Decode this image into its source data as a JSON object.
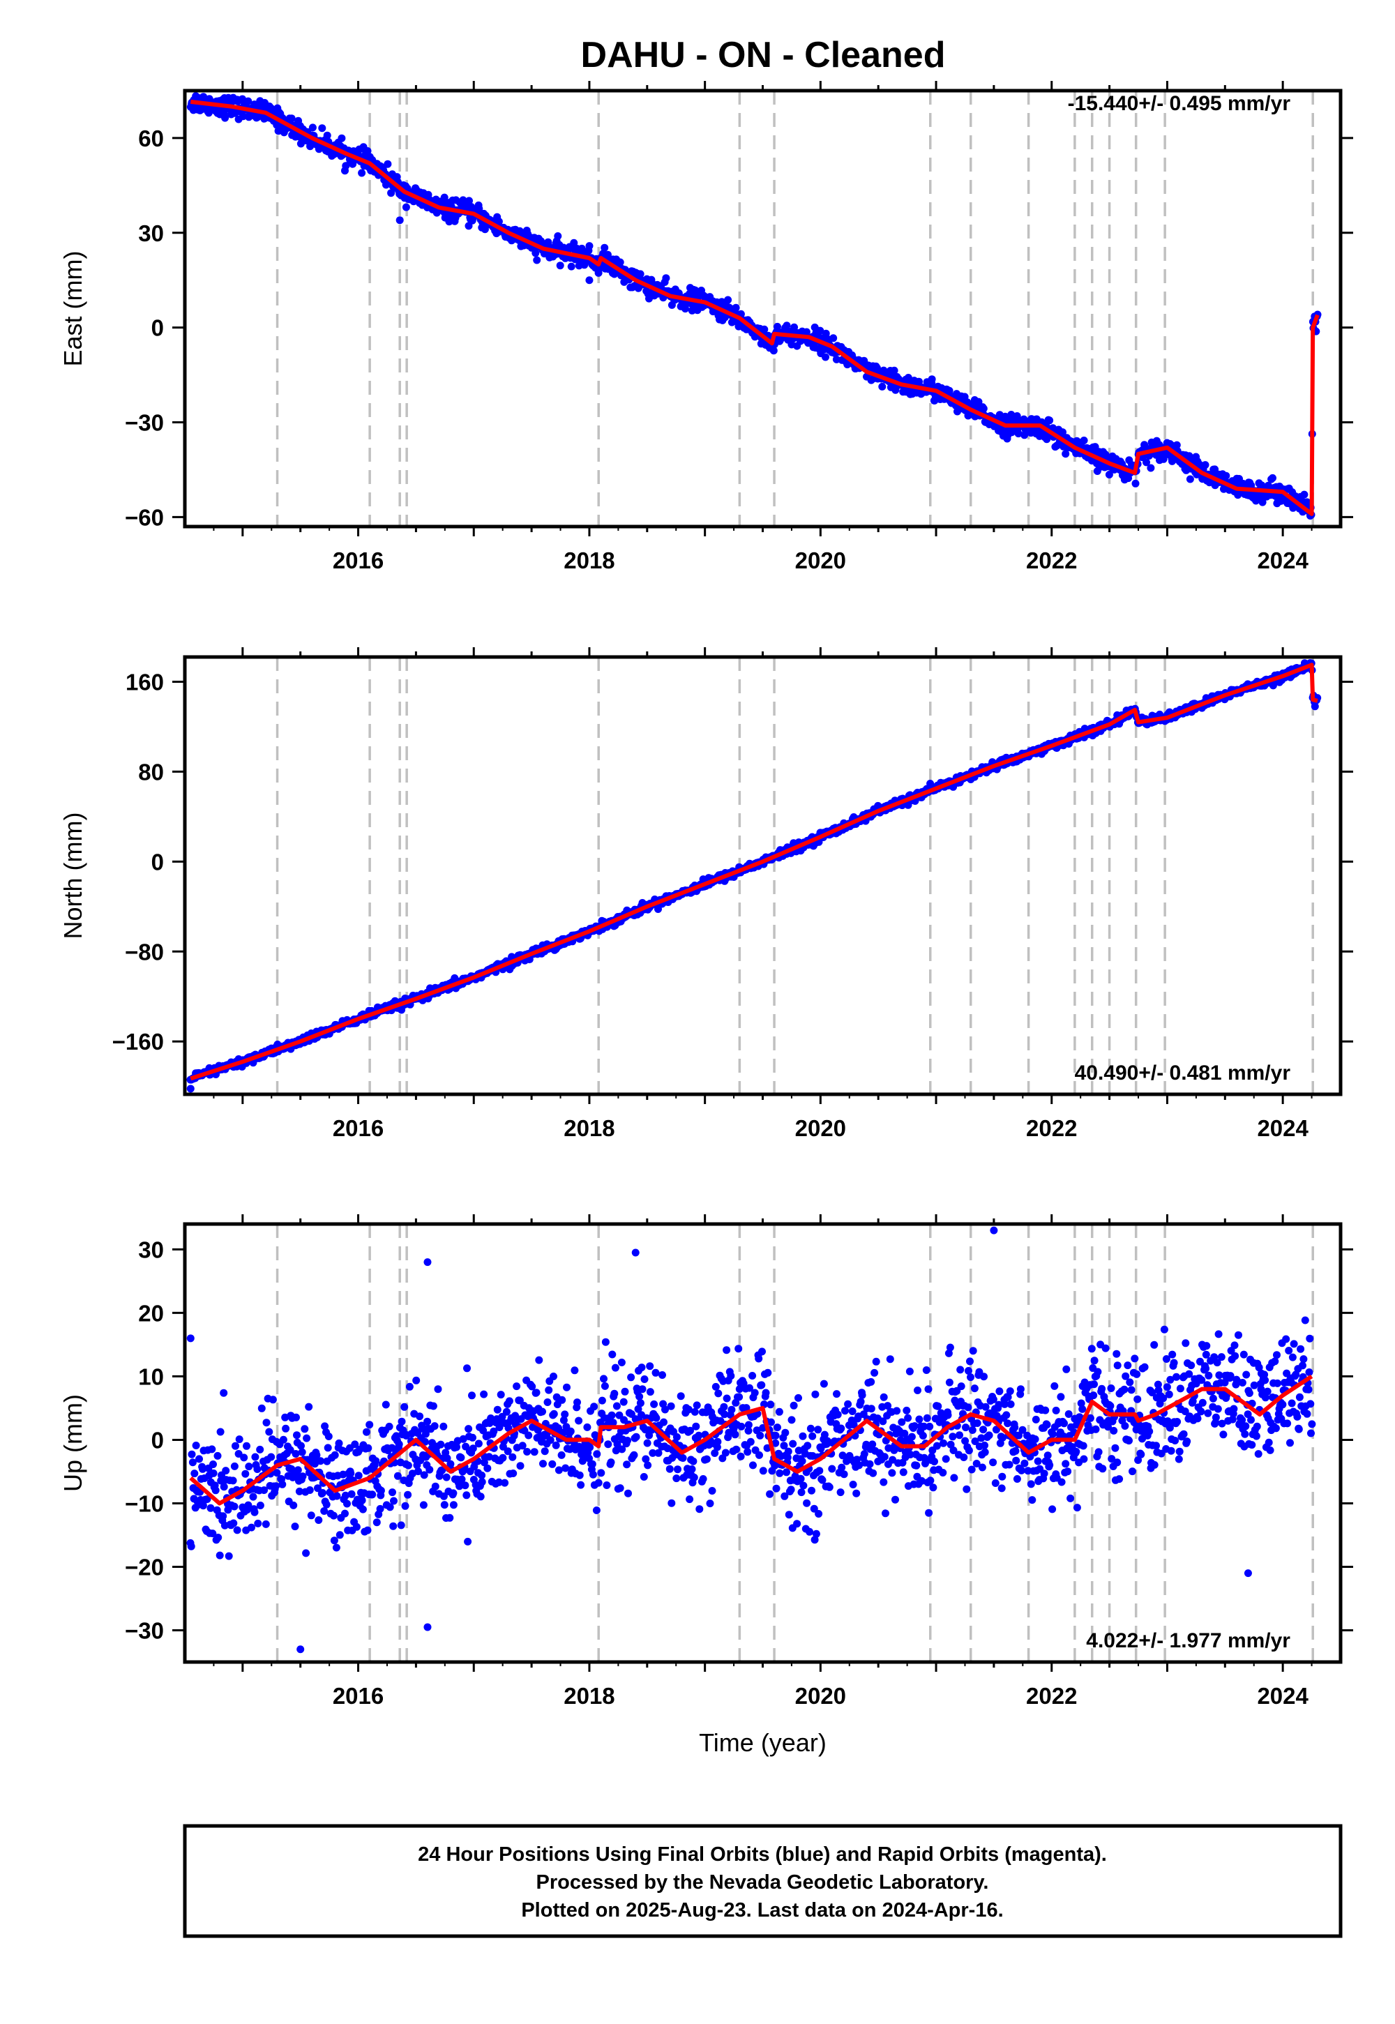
{
  "title": "DAHU  - ON - Cleaned",
  "footer": {
    "line1": "24 Hour Positions Using Final Orbits (blue) and Rapid Orbits (magenta).",
    "line2": "Processed by the Nevada Geodetic Laboratory.",
    "line3": "Plotted on 2025-Aug-23. Last data on 2024-Apr-16."
  },
  "colors": {
    "data": "#0000ff",
    "model": "#ff0000",
    "breaks": "#c0c0c0",
    "frame": "#000000"
  },
  "chart_data": [
    {
      "type": "scatter",
      "component": "east",
      "ylabel": "East (mm)",
      "xlabel": "",
      "xlim": [
        2014.5,
        2024.5
      ],
      "ylim": [
        -63,
        75
      ],
      "yticks": [
        60,
        30,
        0,
        -30,
        -60
      ],
      "ytick_labels": [
        "60",
        "30",
        "0",
        "−30",
        "−60"
      ],
      "xticks": [
        2016,
        2018,
        2020,
        2022,
        2024
      ],
      "xtick_labels": [
        "2016",
        "2018",
        "2020",
        "2022",
        "2024"
      ],
      "rate_label": "-15.440+/- 0.495 mm/yr",
      "rate_mm_yr": -15.44,
      "rate_sigma": 0.495,
      "scatter_sigma": 1.6,
      "model": {
        "x": [
          2014.55,
          2014.9,
          2015.2,
          2015.6,
          2015.9,
          2016.1,
          2016.4,
          2016.7,
          2017.0,
          2017.3,
          2017.6,
          2018.0,
          2018.08,
          2018.1,
          2018.4,
          2018.7,
          2019.0,
          2019.3,
          2019.58,
          2019.6,
          2019.9,
          2020.1,
          2020.4,
          2020.7,
          2021.0,
          2021.3,
          2021.6,
          2021.9,
          2022.2,
          2022.5,
          2022.72,
          2022.75,
          2023.0,
          2023.3,
          2023.6,
          2024.0,
          2024.25,
          2024.26,
          2024.3
        ],
        "y": [
          71.5,
          70,
          68,
          60,
          55,
          52,
          43,
          38,
          36,
          30,
          25,
          22,
          20,
          22,
          15,
          10,
          8,
          3,
          -5,
          -2,
          -3,
          -6,
          -14,
          -18,
          -20,
          -26,
          -31,
          -31,
          -38,
          -43,
          -46,
          -40,
          -38,
          -46,
          -51,
          -52,
          -59,
          0,
          4
        ]
      },
      "outliers": [
        {
          "x": 2016.36,
          "y": 34
        },
        {
          "x": 2018.0,
          "y": 15
        }
      ]
    },
    {
      "type": "scatter",
      "component": "north",
      "ylabel": "North (mm)",
      "xlabel": "",
      "xlim": [
        2014.5,
        2024.5
      ],
      "ylim": [
        -207,
        182
      ],
      "yticks": [
        160,
        80,
        0,
        -80,
        -160
      ],
      "ytick_labels": [
        "160",
        "80",
        "0",
        "−80",
        "−160"
      ],
      "xticks": [
        2016,
        2018,
        2020,
        2022,
        2024
      ],
      "xtick_labels": [
        "2016",
        "2018",
        "2020",
        "2022",
        "2024"
      ],
      "rate_label": "40.490+/- 0.481 mm/yr",
      "rate_mm_yr": 40.49,
      "rate_sigma": 0.481,
      "scatter_sigma": 1.8,
      "model": {
        "x": [
          2014.55,
          2015.0,
          2015.5,
          2016.0,
          2016.5,
          2017.0,
          2017.5,
          2018.0,
          2018.5,
          2019.0,
          2019.5,
          2020.0,
          2020.5,
          2021.0,
          2021.5,
          2022.0,
          2022.5,
          2022.72,
          2022.75,
          2023.0,
          2023.5,
          2024.0,
          2024.25,
          2024.26,
          2024.3
        ],
        "y": [
          -193,
          -178,
          -160,
          -140,
          -122,
          -103,
          -82,
          -62,
          -40,
          -20,
          0,
          22,
          45,
          65,
          85,
          103,
          122,
          135,
          124,
          128,
          148,
          165,
          175,
          144,
          143
        ]
      },
      "outliers": [
        {
          "x": 2014.55,
          "y": -202
        }
      ]
    },
    {
      "type": "scatter",
      "component": "up",
      "ylabel": "Up (mm)",
      "xlabel": "Time (year)",
      "xlim": [
        2014.5,
        2024.5
      ],
      "ylim": [
        -35,
        34
      ],
      "yticks": [
        30,
        20,
        10,
        0,
        -10,
        -20,
        -30
      ],
      "ytick_labels": [
        "30",
        "20",
        "10",
        "0",
        "−10",
        "−20",
        "−30"
      ],
      "xticks": [
        2016,
        2018,
        2020,
        2022,
        2024
      ],
      "xtick_labels": [
        "2016",
        "2018",
        "2020",
        "2022",
        "2024"
      ],
      "rate_label": "4.022+/- 1.977 mm/yr",
      "rate_mm_yr": 4.022,
      "rate_sigma": 1.977,
      "scatter_sigma": 4.5,
      "model": {
        "x": [
          2014.55,
          2014.8,
          2015.0,
          2015.3,
          2015.5,
          2015.8,
          2016.1,
          2016.3,
          2016.5,
          2016.8,
          2017.0,
          2017.3,
          2017.5,
          2017.8,
          2018.0,
          2018.08,
          2018.1,
          2018.3,
          2018.5,
          2018.8,
          2019.0,
          2019.3,
          2019.5,
          2019.6,
          2019.8,
          2020.0,
          2020.2,
          2020.4,
          2020.7,
          2020.9,
          2021.1,
          2021.3,
          2021.5,
          2021.8,
          2022.0,
          2022.2,
          2022.35,
          2022.5,
          2022.72,
          2022.75,
          2022.9,
          2023.0,
          2023.3,
          2023.5,
          2023.8,
          2024.0,
          2024.25
        ],
        "y": [
          -6,
          -10,
          -8,
          -4,
          -3,
          -8,
          -6,
          -3,
          0,
          -5,
          -3,
          1,
          3,
          0,
          0,
          -1,
          2,
          2,
          3,
          -2,
          0,
          4,
          5,
          -3,
          -5,
          -3,
          0,
          3,
          -1,
          -1,
          2,
          4,
          3,
          -2,
          0,
          0,
          6,
          4,
          4,
          3,
          4,
          5,
          8,
          8,
          4,
          7,
          10
        ]
      },
      "outliers": [
        {
          "x": 2014.55,
          "y": 16
        },
        {
          "x": 2015.5,
          "y": -33
        },
        {
          "x": 2016.6,
          "y": 28
        },
        {
          "x": 2016.6,
          "y": -29.5
        },
        {
          "x": 2018.4,
          "y": 29.5
        },
        {
          "x": 2021.5,
          "y": 33
        },
        {
          "x": 2023.7,
          "y": -21
        }
      ]
    }
  ],
  "breaks": [
    2015.3,
    2016.1,
    2016.36,
    2016.42,
    2018.08,
    2019.3,
    2019.6,
    2020.95,
    2021.3,
    2021.8,
    2022.2,
    2022.35,
    2022.5,
    2022.73,
    2022.98,
    2024.26
  ]
}
